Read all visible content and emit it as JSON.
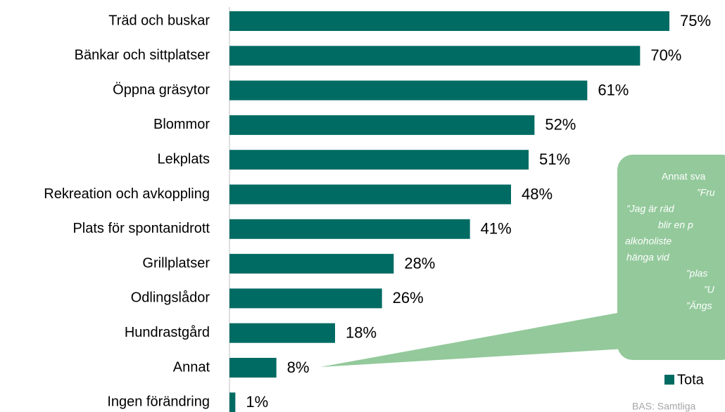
{
  "chart_data": {
    "type": "barh",
    "categories": [
      "Träd och buskar",
      "Bänkar och sittplatser",
      "Öppna gräsytor",
      "Blommor",
      "Lekplats",
      "Rekreation och avkoppling",
      "Plats för spontanidrott",
      "Grillplatser",
      "Odlingslådor",
      "Hundrastgård",
      "Annat",
      "Ingen förändring"
    ],
    "series": [
      {
        "name": "Tota",
        "color": "#006b63",
        "values": [
          75,
          70,
          61,
          52,
          51,
          48,
          41,
          28,
          26,
          18,
          8,
          1
        ],
        "value_labels": [
          "75%",
          "70%",
          "61%",
          "52%",
          "51%",
          "48%",
          "41%",
          "28%",
          "26%",
          "18%",
          "8%",
          "1%"
        ]
      }
    ],
    "xlim": [
      0,
      75
    ],
    "annotation": [
      "Annat sva",
      "”Fru",
      "”Jag är räd",
      "blir en p",
      "alkoholiste",
      "hänga vid",
      "”plas",
      "”U",
      "”Ängs"
    ],
    "source": "BAS: Samtliga"
  }
}
